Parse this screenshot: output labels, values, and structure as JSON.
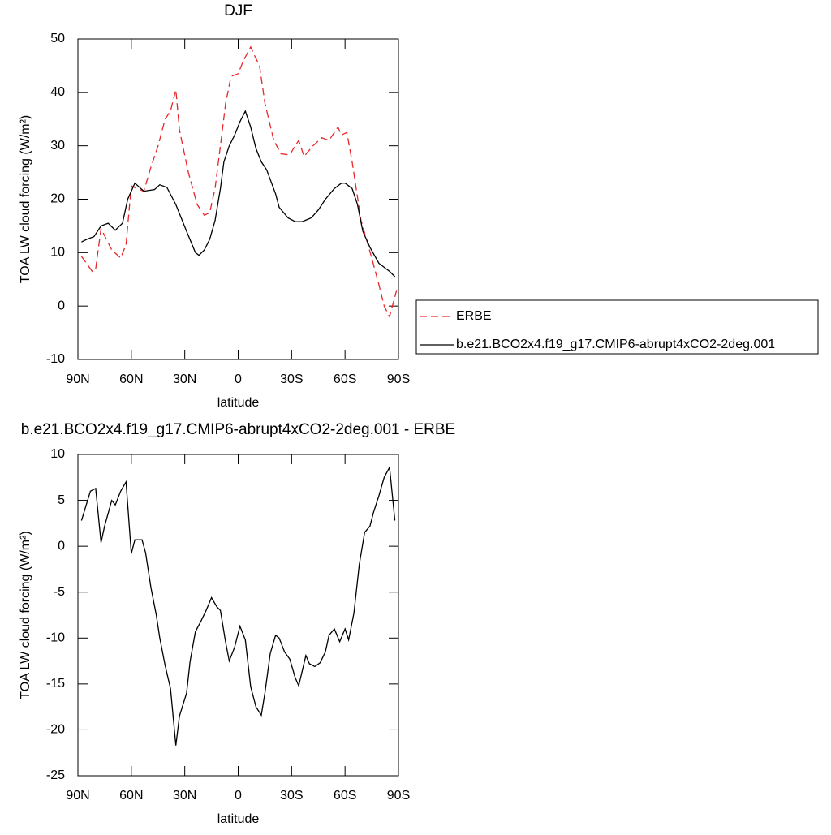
{
  "chart_data": [
    {
      "type": "line",
      "title": "DJF",
      "xlabel": "latitude",
      "ylabel": "TOA LW cloud forcing (W/m²)",
      "xlim": [
        90,
        -90
      ],
      "xticks": [
        {
          "value": 90,
          "label": "90N"
        },
        {
          "value": 60,
          "label": "60N"
        },
        {
          "value": 30,
          "label": "30N"
        },
        0,
        {
          "value": -30,
          "label": "30S"
        },
        {
          "value": -60,
          "label": "60S"
        },
        {
          "value": -90,
          "label": "90S"
        }
      ],
      "ylim": [
        -10,
        50
      ],
      "yticks": [
        -10,
        0,
        10,
        20,
        30,
        40,
        50
      ],
      "legend": "right",
      "series": [
        {
          "name": "ERBE",
          "color": "#e8262a",
          "dash": "dashed",
          "x": [
            88,
            82,
            80,
            77,
            71,
            66,
            63,
            60,
            57,
            53,
            49,
            45,
            41,
            38,
            35,
            33,
            28,
            23,
            19,
            16,
            13,
            10,
            7,
            4,
            0,
            -3,
            -7,
            -9,
            -12,
            -15,
            -20,
            -24,
            -29,
            -32,
            -34,
            -37,
            -42,
            -47,
            -51,
            -56,
            -58,
            -61,
            -64,
            -69,
            -75,
            -79,
            -82,
            -85,
            -89
          ],
          "values": [
            9.3,
            6.5,
            7,
            14.5,
            10.5,
            9,
            11.5,
            22.5,
            22,
            21.5,
            26,
            30,
            35,
            36.5,
            40.5,
            33,
            25,
            19,
            17,
            17.5,
            22,
            30,
            38,
            43,
            43.5,
            46,
            48.5,
            47,
            45,
            38,
            31,
            28.5,
            28.3,
            30,
            31,
            28,
            30,
            31.5,
            31,
            33.5,
            32,
            32.5,
            27,
            16,
            9,
            4,
            0,
            -2,
            3
          ]
        },
        {
          "name": "b.e21.BCO2x4.f19_g17.CMIP6-abrupt4xCO2-2deg.001",
          "color": "#000000",
          "dash": "solid",
          "x": [
            88,
            85,
            81,
            77,
            73,
            69,
            65,
            62,
            58,
            53,
            47,
            44,
            40,
            35,
            29,
            24,
            22,
            19,
            16,
            13,
            10,
            8,
            5,
            2,
            -1,
            -4,
            -7,
            -10,
            -13,
            -16,
            -21,
            -23,
            -28,
            -32,
            -36,
            -41,
            -45,
            -49,
            -54,
            -58,
            -60,
            -64,
            -67,
            -70,
            -74,
            -79,
            -83,
            -85,
            -88
          ],
          "values": [
            12,
            12.5,
            13,
            15,
            15.5,
            14.2,
            15.5,
            20,
            23,
            21.5,
            21.8,
            22.7,
            22.2,
            19,
            14,
            10,
            9.5,
            10.5,
            12.5,
            16,
            22,
            27,
            30,
            32,
            34.5,
            36.5,
            33.5,
            29.5,
            27,
            25.5,
            21,
            18.5,
            16.5,
            15.8,
            15.8,
            16.5,
            18,
            20,
            22,
            23,
            23,
            22,
            19,
            14,
            11,
            8,
            7,
            6.5,
            5.5
          ]
        }
      ]
    },
    {
      "type": "line",
      "title": "b.e21.BCO2x4.f19_g17.CMIP6-abrupt4xCO2-2deg.001 - ERBE",
      "xlabel": "latitude",
      "ylabel": "TOA LW cloud forcing (W/m²)",
      "xlim": [
        90,
        -90
      ],
      "xticks": [
        {
          "value": 90,
          "label": "90N"
        },
        {
          "value": 60,
          "label": "60N"
        },
        {
          "value": 30,
          "label": "30N"
        },
        0,
        {
          "value": -30,
          "label": "30S"
        },
        {
          "value": -60,
          "label": "60S"
        },
        {
          "value": -90,
          "label": "90S"
        }
      ],
      "ylim": [
        -25,
        10
      ],
      "yticks": [
        -25,
        -20,
        -15,
        -10,
        -5,
        0,
        5,
        10
      ],
      "series": [
        {
          "color": "#000000",
          "dash": "solid",
          "x": [
            88,
            83,
            80,
            77,
            75,
            71,
            69,
            66,
            63,
            60,
            58,
            54,
            52,
            49,
            46,
            44,
            41,
            38,
            35,
            33,
            29,
            27,
            24,
            21,
            18,
            15,
            12,
            10,
            7,
            5,
            2,
            -1,
            -4,
            -7,
            -10,
            -13,
            -15,
            -18,
            -21,
            -23,
            -26,
            -29,
            -32,
            -34,
            -38,
            -40,
            -43,
            -46,
            -49,
            -51,
            -54,
            -57,
            -60,
            -62,
            -65,
            -68,
            -71,
            -74,
            -76,
            -79,
            -82,
            -85,
            -88
          ],
          "values": [
            2.8,
            6,
            6.3,
            0.4,
            2.2,
            5,
            4.5,
            6,
            7,
            -0.8,
            0.7,
            0.7,
            -0.7,
            -4.5,
            -7.5,
            -10,
            -13,
            -15.5,
            -21.7,
            -18.5,
            -16,
            -12.5,
            -9.3,
            -8.2,
            -7,
            -5.6,
            -6.6,
            -7,
            -10.5,
            -12.5,
            -11,
            -8.7,
            -10.2,
            -15.3,
            -17.5,
            -18.4,
            -16,
            -11.7,
            -9.7,
            -10,
            -11.5,
            -12.3,
            -14.3,
            -15.2,
            -11.9,
            -12.8,
            -13.1,
            -12.7,
            -11.5,
            -9.7,
            -9,
            -10.4,
            -9,
            -10.2,
            -7.3,
            -2,
            1.5,
            2.2,
            3.7,
            5.5,
            7.5,
            8.6,
            2.8
          ]
        }
      ]
    }
  ]
}
